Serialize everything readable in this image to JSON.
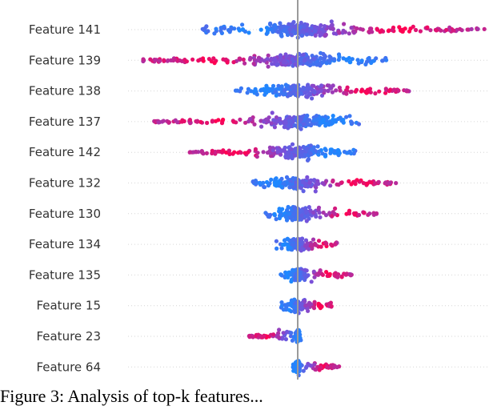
{
  "chart_data": {
    "type": "scatter",
    "subtype": "beeswarm",
    "title": "",
    "xlabel": "",
    "ylabel": "",
    "xlim": [
      -1.0,
      1.2
    ],
    "zero_line": 0,
    "grid": false,
    "legend": "none",
    "colormap": {
      "low": "#1e88ff",
      "mid": "#7b4fd8",
      "high": "#ff0052"
    },
    "features": [
      {
        "name": "Feature 141",
        "min": -0.55,
        "max": 1.05,
        "low_min": -0.55,
        "low_max": 0.0,
        "high_min": 0.1,
        "high_max": 1.05
      },
      {
        "name": "Feature 139",
        "min": -0.87,
        "max": 0.52,
        "low_min": 0.05,
        "low_max": 0.52,
        "high_min": -0.87,
        "high_max": -0.1
      },
      {
        "name": "Feature 138",
        "min": -0.35,
        "max": 0.62,
        "low_min": -0.35,
        "low_max": 0.0,
        "high_min": 0.15,
        "high_max": 0.62
      },
      {
        "name": "Feature 137",
        "min": -0.8,
        "max": 0.35,
        "low_min": 0.05,
        "low_max": 0.35,
        "high_min": -0.8,
        "high_max": -0.1
      },
      {
        "name": "Feature 142",
        "min": -0.6,
        "max": 0.32,
        "low_min": 0.05,
        "low_max": 0.32,
        "high_min": -0.6,
        "high_max": -0.08
      },
      {
        "name": "Feature 132",
        "min": -0.25,
        "max": 0.55,
        "low_min": -0.25,
        "low_max": 0.0,
        "high_min": 0.1,
        "high_max": 0.55
      },
      {
        "name": "Feature 130",
        "min": -0.18,
        "max": 0.45,
        "low_min": -0.18,
        "low_max": 0.0,
        "high_min": 0.1,
        "high_max": 0.45
      },
      {
        "name": "Feature 134",
        "min": -0.12,
        "max": 0.22,
        "low_min": -0.12,
        "low_max": 0.0,
        "high_min": 0.05,
        "high_max": 0.22
      },
      {
        "name": "Feature 135",
        "min": -0.1,
        "max": 0.3,
        "low_min": -0.1,
        "low_max": 0.0,
        "high_min": 0.05,
        "high_max": 0.3
      },
      {
        "name": "Feature 15",
        "min": -0.1,
        "max": 0.2,
        "low_min": -0.1,
        "low_max": 0.0,
        "high_min": 0.05,
        "high_max": 0.2
      },
      {
        "name": "Feature 23",
        "min": -0.27,
        "max": 0.02,
        "low_min": 0.0,
        "low_max": 0.02,
        "high_min": -0.27,
        "high_max": -0.08
      },
      {
        "name": "Feature 64",
        "min": -0.03,
        "max": 0.23,
        "low_min": -0.03,
        "low_max": 0.0,
        "high_min": 0.05,
        "high_max": 0.23
      }
    ]
  },
  "caption": "Figure 3: Analysis of top-k features..."
}
